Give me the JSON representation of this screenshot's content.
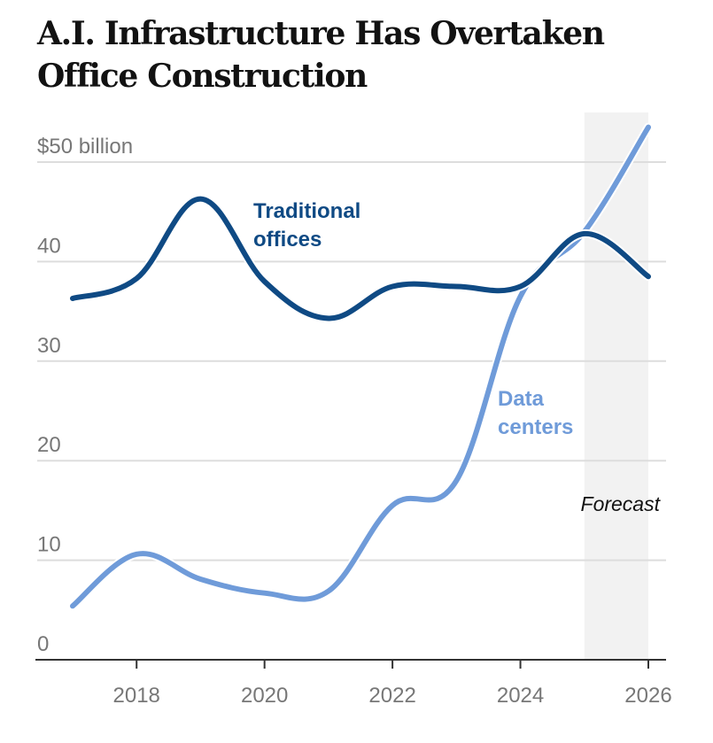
{
  "chart_data": {
    "type": "line",
    "title": "A.I. Infrastructure Has Overtaken Office Construction",
    "xlabel": "",
    "ylabel": "",
    "y_unit_label": "$50 billion",
    "ylim": [
      0,
      50
    ],
    "xlim": [
      2017,
      2026
    ],
    "grid": true,
    "y_ticks": [
      0,
      10,
      20,
      30,
      40,
      50
    ],
    "y_tick_labels": [
      "0",
      "10",
      "20",
      "30",
      "40",
      "$50 billion"
    ],
    "x_ticks": [
      2018,
      2020,
      2022,
      2024,
      2026
    ],
    "x_tick_labels": [
      "2018",
      "2020",
      "2022",
      "2024",
      "2026"
    ],
    "x": [
      2017,
      2018,
      2019,
      2020,
      2021,
      2022,
      2023,
      2024,
      2025,
      2026
    ],
    "series": [
      {
        "name": "Traditional offices",
        "label_lines": [
          "Traditional",
          "offices"
        ],
        "color": "#0f4a84",
        "values": [
          36.3,
          38.3,
          46.3,
          38.0,
          34.3,
          37.5,
          37.5,
          37.5,
          42.8,
          38.5
        ]
      },
      {
        "name": "Data centers",
        "label_lines": [
          "Data",
          "centers"
        ],
        "color": "#6f9bd9",
        "values": [
          5.4,
          10.6,
          8.1,
          6.7,
          6.9,
          15.5,
          18.0,
          36.5,
          43.0,
          53.5
        ]
      }
    ],
    "annotations": [
      {
        "type": "shaded-region",
        "label": "Forecast",
        "x_range": [
          2025,
          2026
        ],
        "color": "#f2f2f2"
      }
    ]
  }
}
